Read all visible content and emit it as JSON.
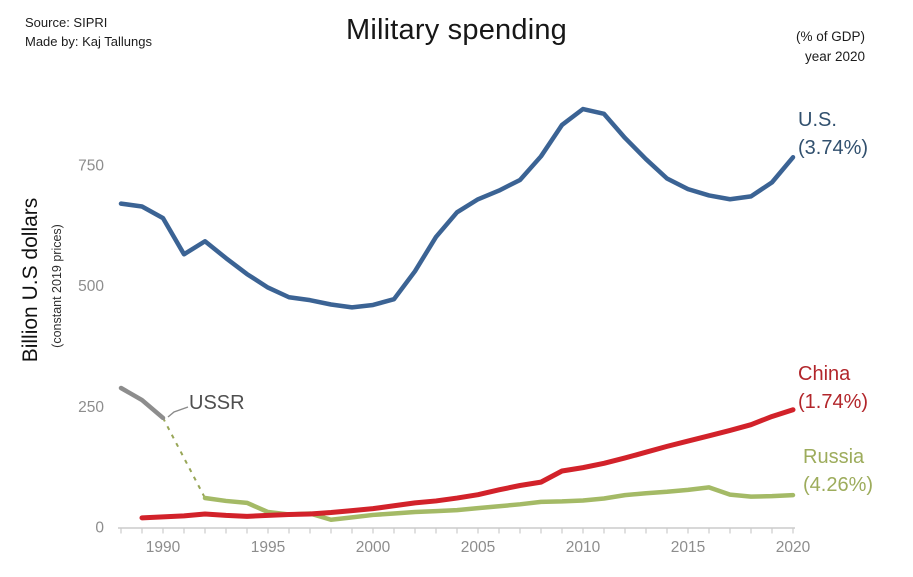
{
  "header": {
    "source": "Source: SIPRI",
    "credit": "Made by: Kaj Tallungs",
    "title": "Military spending",
    "note1": "(% of GDP)",
    "note2": "year 2020"
  },
  "y_axis": {
    "label": "Billion U.S dollars",
    "sublabel": "(constant 2019 prices)"
  },
  "labels": {
    "us": {
      "line1": "U.S.",
      "line2": "(3.74%)"
    },
    "china": {
      "line1": "China",
      "line2": "(1.74%)"
    },
    "russia": {
      "line1": "Russia",
      "line2": "(4.26%)"
    },
    "ussr": "USSR"
  },
  "chart_data": {
    "type": "line",
    "title": "Military spending",
    "ylabel": "Billion U.S dollars (constant 2019 prices)",
    "xlim": [
      1988,
      2020
    ],
    "ylim": [
      0,
      900
    ],
    "x_ticks": [
      1990,
      1995,
      2000,
      2005,
      2010,
      2015,
      2020
    ],
    "y_ticks": [
      0,
      250,
      500,
      750
    ],
    "grid": false,
    "legend_position": "right-of-line-ends",
    "colors": {
      "axis": "#cbcbcb",
      "tick_label": "#8d8d8d",
      "callout": "#8a8a8a"
    },
    "series": [
      {
        "name": "USSR",
        "color": "#8d8d8d",
        "width": 4.5,
        "start_year": 1988,
        "values": [
          288,
          263,
          226
        ]
      },
      {
        "name": "Russia",
        "color": "#a4ba66",
        "width": 4.5,
        "start_year": 1992,
        "gdp_pct_2020": "4.26%",
        "values": [
          60,
          54,
          50,
          31,
          26,
          28,
          15,
          20,
          25,
          28,
          31,
          33,
          35,
          39,
          43,
          47,
          52,
          53,
          55,
          59,
          66,
          70,
          73,
          77,
          82,
          67,
          63,
          64,
          66
        ]
      },
      {
        "name": "China",
        "color": "#d2222a",
        "width": 5,
        "start_year": 1989,
        "gdp_pct_2020": "1.74%",
        "values": [
          19,
          21,
          23,
          27,
          24,
          22,
          24,
          26,
          27,
          30,
          34,
          38,
          44,
          50,
          54,
          60,
          67,
          77,
          86,
          93,
          116,
          123,
          132,
          143,
          155,
          167,
          178,
          189,
          200,
          212,
          229,
          243
        ]
      },
      {
        "name": "U.S.",
        "color": "#3b6394",
        "width": 4.5,
        "start_year": 1988,
        "gdp_pct_2020": "3.74%",
        "values": [
          670,
          664,
          640,
          565,
          592,
          557,
          524,
          496,
          476,
          470,
          461,
          455,
          460,
          472,
          530,
          601,
          652,
          679,
          697,
          719,
          768,
          833,
          866,
          856,
          806,
          762,
          722,
          700,
          687,
          679,
          685,
          714,
          766
        ]
      }
    ],
    "connector": {
      "from_year": 1990,
      "from_value": 226,
      "to_year": 1992,
      "to_value": 60,
      "style": "dashed",
      "color": "#98a657"
    }
  }
}
